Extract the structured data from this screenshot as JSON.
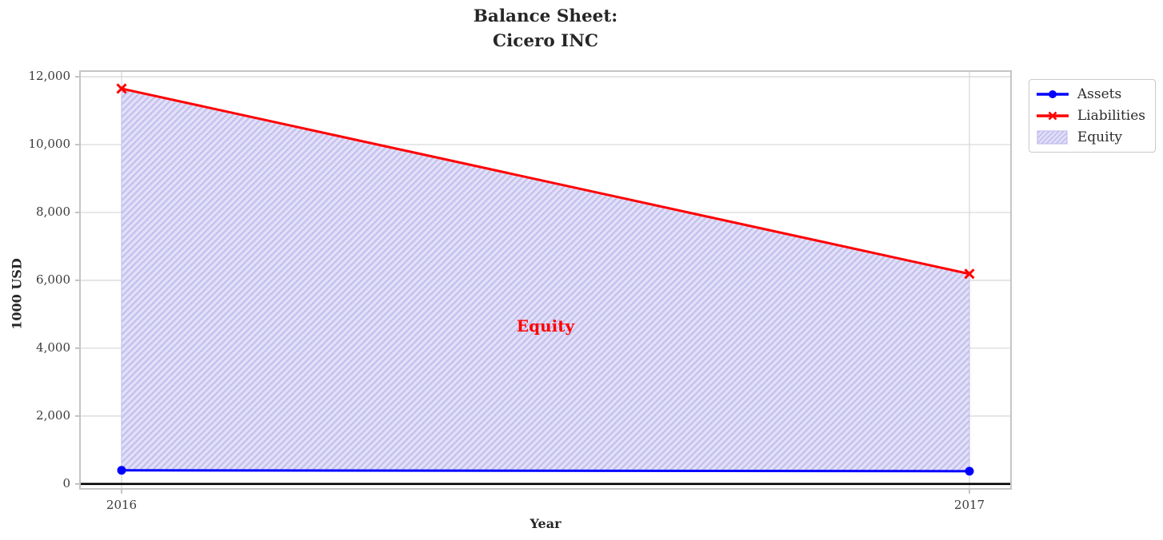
{
  "chart_data": {
    "type": "line",
    "title": "Balance Sheet:\nCicero INC",
    "xlabel": "Year",
    "ylabel": "1000 USD",
    "x": [
      2016,
      2017
    ],
    "series": [
      {
        "name": "Assets",
        "color": "#0000ff",
        "marker": "circle",
        "values": [
          400,
          375
        ]
      },
      {
        "name": "Liabilities",
        "color": "#ff0000",
        "marker": "x",
        "values": [
          11650,
          6190
        ]
      }
    ],
    "area": {
      "name": "Equity",
      "lower": "Assets",
      "upper": "Liabilities",
      "fill": "#e2e0f7",
      "hatch": "/",
      "hatch_color": "#c3bfee"
    },
    "annotation": {
      "text": "Equity",
      "x": 2016.5,
      "y": 4650,
      "color": "#ff0000"
    },
    "xticks": [
      2016,
      2017
    ],
    "xtick_labels": [
      "2016",
      "2017"
    ],
    "yticks": [
      0,
      2000,
      4000,
      6000,
      8000,
      10000,
      12000
    ],
    "ytick_labels": [
      "0",
      "2,000",
      "4,000",
      "6,000",
      "8,000",
      "10,000",
      "12,000"
    ],
    "xlim": [
      2015.95,
      2017.05
    ],
    "ylim": [
      -170,
      12190
    ],
    "grid": true,
    "zero_line": true,
    "legend_position": "outside-top-right",
    "colors": {
      "grid": "#d9d9d9",
      "spine": "#c5c5c5",
      "tick": "#aaaaaa",
      "zero_line": "#000000",
      "text": "#262626"
    }
  },
  "legend": {
    "items": [
      {
        "label": "Assets",
        "sample": "line-circle",
        "color": "#0000ff"
      },
      {
        "label": "Liabilities",
        "sample": "line-x",
        "color": "#ff0000"
      },
      {
        "label": "Equity",
        "sample": "patch",
        "fill": "#e2e0f7",
        "hatch_color": "#c3bfee"
      }
    ]
  }
}
